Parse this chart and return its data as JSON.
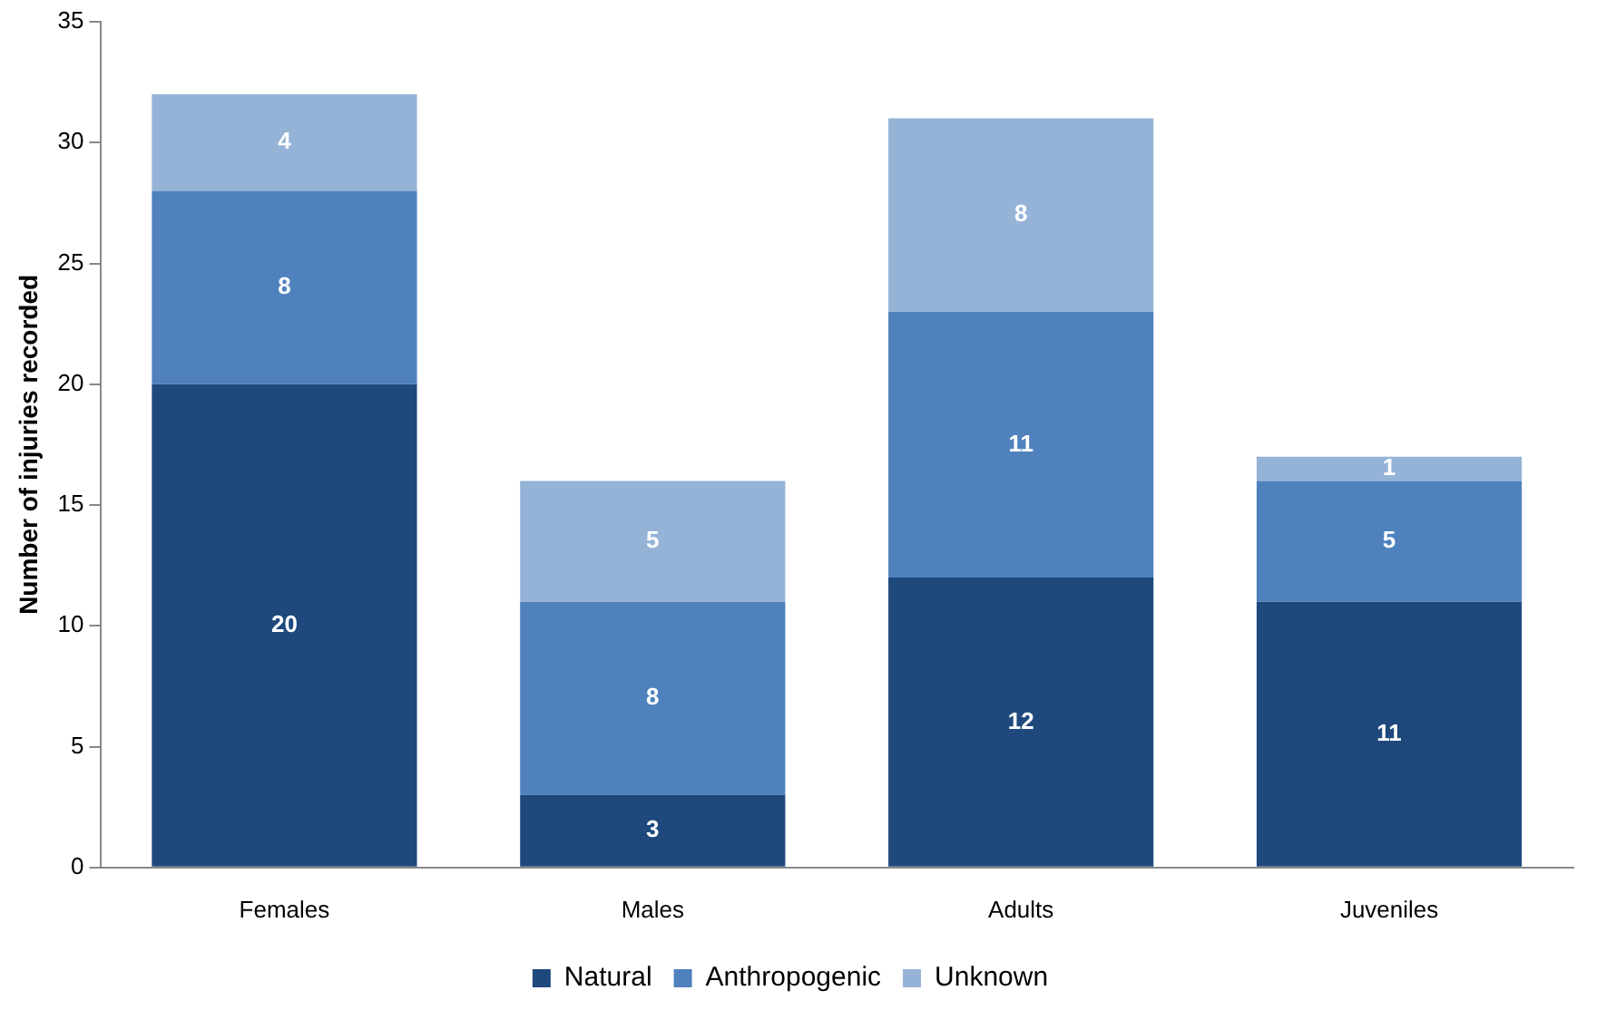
{
  "chart_data": {
    "type": "bar",
    "stacked": true,
    "ylabel": "Number of injuries recorded",
    "categories": [
      "Females",
      "Males",
      "Adults",
      "Juveniles"
    ],
    "series": [
      {
        "name": "Natural",
        "color": "#1f497d",
        "values": [
          20,
          3,
          12,
          11
        ]
      },
      {
        "name": "Anthropogenic",
        "color": "#4f81bd",
        "values": [
          8,
          8,
          11,
          5
        ]
      },
      {
        "name": "Unknown",
        "color": "#95b3d7",
        "values": [
          4,
          5,
          8,
          1
        ]
      }
    ],
    "ylim": [
      0,
      35
    ],
    "yticks": [
      0,
      5,
      10,
      15,
      20,
      25,
      30,
      35
    ],
    "grid": false,
    "legend": "bottom",
    "data_labels": true
  }
}
